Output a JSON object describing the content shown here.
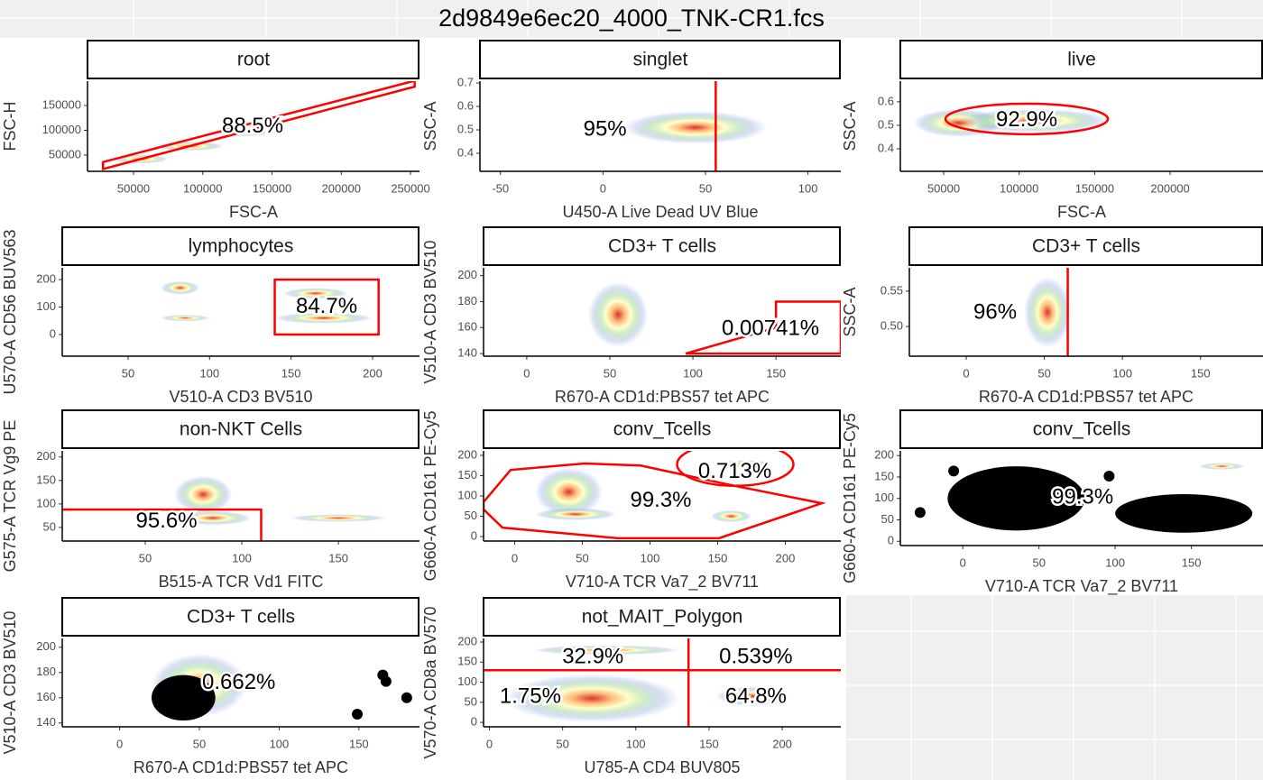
{
  "title": "2d9849e6ec20_4000_TNK-CR1.fcs",
  "chart_data": [
    {
      "type": "scatter",
      "title": "root",
      "xlabel": "FSC-A",
      "ylabel": "FSC-H",
      "xlim": [
        16776,
        256500
      ],
      "ylim": [
        17300,
        199100
      ],
      "xticks": [
        50000,
        100000,
        150000,
        200000,
        250000
      ],
      "yticks": [
        50000,
        100000,
        150000
      ],
      "clusters": [
        {
          "x": 55000,
          "y": 42000,
          "rx": 20000,
          "ry": 9000
        },
        {
          "x": 90000,
          "y": 68000,
          "rx": 25000,
          "ry": 9000
        },
        {
          "x": 130000,
          "y": 95000,
          "rx": 20000,
          "ry": 7000
        }
      ],
      "gates": [
        {
          "shape": "polygon",
          "x": [
            28000,
            253000,
            253000,
            28000
          ],
          "y": [
            36000,
            200000,
            188000,
            22000
          ]
        }
      ],
      "labels": [
        {
          "text": "88.5%",
          "x": 136000,
          "y": 107000
        }
      ]
    },
    {
      "type": "scatter",
      "title": "singlet",
      "xlabel": "U450-A Live Dead UV Blue",
      "ylabel": "SSC-A",
      "xlim": [
        -60,
        116
      ],
      "ylim": [
        0.323,
        0.708
      ],
      "xticks": [
        -50,
        0,
        50,
        100
      ],
      "yticks": [
        0.4,
        0.5,
        0.6,
        0.7
      ],
      "clusters": [
        {
          "x": 45,
          "y": 0.51,
          "rx": 35,
          "ry": 0.07
        }
      ],
      "gates": [
        {
          "shape": "vline",
          "x": 55
        }
      ],
      "labels": [
        {
          "text": "95%",
          "x": 1,
          "y": 0.5
        }
      ]
    },
    {
      "type": "scatter",
      "title": "live",
      "xlabel": "FSC-A",
      "ylabel": "SSC-A",
      "xlim": [
        21300,
        261500
      ],
      "ylim": [
        0.304,
        0.688
      ],
      "xticks": [
        50000,
        100000,
        150000,
        200000
      ],
      "yticks": [
        0.4,
        0.5,
        0.6
      ],
      "clusters": [
        {
          "x": 60000,
          "y": 0.51,
          "rx": 30000,
          "ry": 0.06
        },
        {
          "x": 110000,
          "y": 0.52,
          "rx": 50000,
          "ry": 0.05
        }
      ],
      "gates": [
        {
          "shape": "ellipse",
          "x": 105000,
          "y": 0.527,
          "rx": 53800,
          "ry": 0.065
        }
      ],
      "labels": [
        {
          "text": "92.9%",
          "x": 105000,
          "y": 0.52
        }
      ]
    },
    {
      "type": "scatter",
      "title": "lymphocytes",
      "xlabel": "V510-A CD3 BV510",
      "ylabel": "U570-A CD56 BUV563",
      "xlim": [
        9.6,
        228.8
      ],
      "ylim": [
        -79,
        243
      ],
      "xticks": [
        50,
        100,
        150,
        200
      ],
      "yticks": [
        0,
        100,
        200
      ],
      "clusters": [
        {
          "x": 82,
          "y": 170,
          "rx": 12,
          "ry": 25
        },
        {
          "x": 85,
          "y": 60,
          "rx": 15,
          "ry": 12
        },
        {
          "x": 170,
          "y": 60,
          "rx": 30,
          "ry": 20
        },
        {
          "x": 165,
          "y": 150,
          "rx": 20,
          "ry": 20
        }
      ],
      "gates": [
        {
          "shape": "rect",
          "x": [
            140,
            203.7
          ],
          "y": [
            0,
            200
          ]
        }
      ],
      "labels": [
        {
          "text": "84.7%",
          "x": 171.8,
          "y": 100
        }
      ]
    },
    {
      "type": "scatter",
      "title": "CD3+ T cells",
      "xlabel": "R670-A CD1d:PBS57 tet APC",
      "ylabel": "V510-A CD3 BV510",
      "xlim": [
        -26,
        189
      ],
      "ylim": [
        138,
        206
      ],
      "xticks": [
        0,
        50,
        100,
        150
      ],
      "yticks": [
        140,
        160,
        180,
        200
      ],
      "clusters": [
        {
          "x": 55,
          "y": 170,
          "rx": 18,
          "ry": 25
        }
      ],
      "gates": [
        {
          "shape": "polygon",
          "x": [
            95.7,
            150,
            150,
            189,
            189
          ],
          "y": [
            140,
            160,
            180,
            180,
            140
          ]
        }
      ],
      "labels": [
        {
          "text": "0.00741%",
          "x": 146.7,
          "y": 158.6
        }
      ]
    },
    {
      "type": "scatter",
      "title": "CD3+ T cells",
      "xlabel": "R670-A CD1d:PBS57 tet APC",
      "ylabel": "SSC-A",
      "xlim": [
        -36.4,
        190
      ],
      "ylim": [
        0.458,
        0.583
      ],
      "xticks": [
        0,
        50,
        100,
        150
      ],
      "yticks": [
        {
          "value": 0.5,
          "label": "0.50"
        },
        {
          "value": 0.55,
          "label": "0.55"
        }
      ],
      "clusters": [
        {
          "x": 52,
          "y": 0.52,
          "rx": 15,
          "ry": 0.05
        }
      ],
      "gates": [
        {
          "shape": "vline",
          "x": 65
        }
      ],
      "labels": [
        {
          "text": "96%",
          "x": 18.5,
          "y": 0.519
        }
      ]
    },
    {
      "type": "scatter",
      "title": "non-NKT Cells",
      "xlabel": "B515-A TCR Vd1 FITC",
      "ylabel": "G575-A TCR Vg9 PE",
      "xlim": [
        7,
        192
      ],
      "ylim": [
        21,
        213
      ],
      "xticks": [
        50,
        100,
        150
      ],
      "yticks": [
        50,
        100,
        150,
        200
      ],
      "clusters": [
        {
          "x": 85,
          "y": 70,
          "rx": 20,
          "ry": 15
        },
        {
          "x": 150,
          "y": 70,
          "rx": 25,
          "ry": 8
        },
        {
          "x": 80,
          "y": 120,
          "rx": 15,
          "ry": 40
        }
      ],
      "gates": [
        {
          "shape": "rect",
          "x": [
            -10,
            110
          ],
          "y": [
            0,
            88
          ]
        }
      ],
      "labels": [
        {
          "text": "95.6%",
          "x": 61,
          "y": 62
        }
      ]
    },
    {
      "type": "scatter",
      "title": "conv_Tcells",
      "xlabel": "V710-A TCR Va7_2 BV711",
      "ylabel": "G660-A CD161 PE-Cy5",
      "xlim": [
        -23,
        241
      ],
      "ylim": [
        -11,
        211
      ],
      "xticks": [
        0,
        50,
        100,
        150,
        200
      ],
      "yticks": [
        0,
        50,
        100,
        150,
        200
      ],
      "clusters": [
        {
          "x": 40,
          "y": 110,
          "rx": 25,
          "ry": 60
        },
        {
          "x": 45,
          "y": 55,
          "rx": 30,
          "ry": 15
        },
        {
          "x": 160,
          "y": 50,
          "rx": 15,
          "ry": 15
        },
        {
          "x": 170,
          "y": 180,
          "rx": 20,
          "ry": 8
        }
      ],
      "gates": [
        {
          "shape": "polygon",
          "x": [
            -23,
            -3,
            52,
            93,
            161,
            227,
            151,
            76,
            -9,
            -23
          ],
          "y": [
            85,
            164,
            180,
            175,
            126,
            82,
            -4,
            -4,
            22,
            67
          ]
        },
        {
          "shape": "ellipse",
          "x": 163,
          "y": 178,
          "rx": 43,
          "ry": 53
        }
      ],
      "labels": [
        {
          "text": "0.713%",
          "x": 162.7,
          "y": 158
        },
        {
          "text": "99.3%",
          "x": 108,
          "y": 87
        }
      ]
    },
    {
      "type": "scatter",
      "title": "conv_Tcells",
      "xlabel": "V710-A TCR Va7_2 BV711",
      "ylabel": "G660-A CD161 PE-Cy5",
      "xlim": [
        -41,
        197
      ],
      "ylim": [
        -10,
        211
      ],
      "xticks": [
        0,
        50,
        100,
        150
      ],
      "yticks": [
        0,
        50,
        100,
        150,
        200
      ],
      "clusters": [
        {
          "x": 170,
          "y": 175,
          "rx": 15,
          "ry": 8
        },
        {
          "x": 35,
          "y": 100,
          "rx": 45,
          "ry": 75,
          "color": "#000000"
        },
        {
          "x": 145,
          "y": 65,
          "rx": 45,
          "ry": 45,
          "color": "#000000"
        }
      ],
      "points": {
        "color": "#000000",
        "x": [
          -28,
          -6,
          96
        ],
        "y": [
          67,
          164,
          152
        ]
      },
      "gates": [],
      "labels": [
        {
          "text": "99.3%",
          "x": 78.7,
          "y": 101
        }
      ]
    },
    {
      "type": "scatter",
      "title": "CD3+ T cells",
      "xlabel": "R670-A CD1d:PBS57 tet APC",
      "ylabel": "V510-A CD3 BV510",
      "xlim": [
        -36,
        188
      ],
      "ylim": [
        137,
        207
      ],
      "xticks": [
        0,
        50,
        100,
        150
      ],
      "yticks": [
        140,
        160,
        180,
        200
      ],
      "clusters": [
        {
          "x": 50,
          "y": 170,
          "rx": 30,
          "ry": 25
        },
        {
          "x": 40,
          "y": 160,
          "rx": 20,
          "ry": 18,
          "color": "#000000"
        }
      ],
      "points": {
        "color": "#000000",
        "x": [
          149,
          165,
          167,
          180
        ],
        "y": [
          147,
          178,
          173,
          160
        ]
      },
      "gates": [],
      "labels": [
        {
          "text": "0.662%",
          "x": 74.7,
          "y": 171.4
        }
      ]
    },
    {
      "type": "scatter",
      "title": "not_MAIT_Polygon",
      "xlabel": "U785-A CD4 BUV805",
      "ylabel": "V570-A CD8a BV570",
      "xlim": [
        -4,
        240
      ],
      "ylim": [
        -11,
        209
      ],
      "xticks": [
        0,
        50,
        100,
        150,
        200
      ],
      "yticks": [
        0,
        50,
        100,
        150,
        200
      ],
      "clusters": [
        {
          "x": 80,
          "y": 180,
          "rx": 50,
          "ry": 12
        },
        {
          "x": 180,
          "y": 65,
          "rx": 25,
          "ry": 25
        },
        {
          "x": 70,
          "y": 60,
          "rx": 60,
          "ry": 60
        }
      ],
      "gates": [
        {
          "shape": "vline",
          "x": 136
        },
        {
          "shape": "hline",
          "y": 130
        }
      ],
      "labels": [
        {
          "text": "32.9%",
          "x": 70.7,
          "y": 161
        },
        {
          "text": "0.539%",
          "x": 182,
          "y": 161
        },
        {
          "text": "1.75%",
          "x": 28,
          "y": 63
        },
        {
          "text": "64.8%",
          "x": 182,
          "y": 63
        }
      ]
    }
  ]
}
